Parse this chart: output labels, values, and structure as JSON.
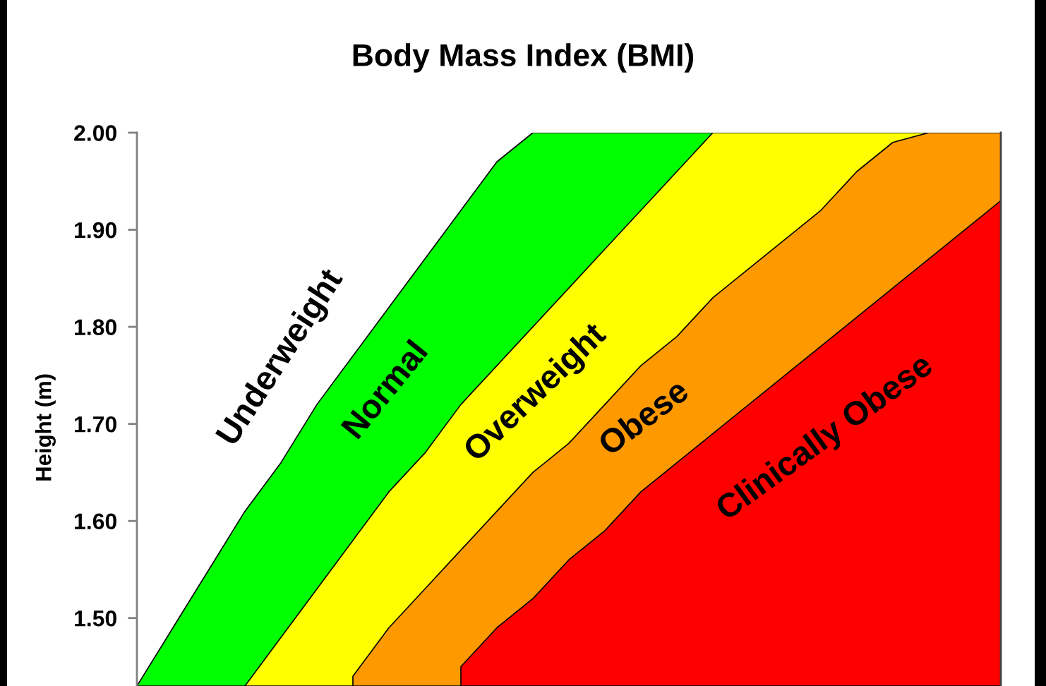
{
  "chart_data": {
    "type": "area",
    "title": "Body Mass Index (BMI)",
    "ylabel": "Height (m)",
    "categories": [
      null,
      null,
      null,
      null,
      null,
      null,
      null,
      null,
      null,
      null,
      null,
      null,
      null,
      null,
      null,
      null,
      null,
      null,
      null,
      null,
      null,
      null,
      null,
      null,
      null
    ],
    "ylim": [
      1.43,
      2.0
    ],
    "yticks": [
      {
        "value": 1.5,
        "label": "1.50"
      },
      {
        "value": 1.6,
        "label": "1.60"
      },
      {
        "value": 1.7,
        "label": "1.70"
      },
      {
        "value": 1.8,
        "label": "1.80"
      },
      {
        "value": 1.9,
        "label": "1.90"
      },
      {
        "value": 2.0,
        "label": "2.00"
      }
    ],
    "tick_labels": "y",
    "series": [
      {
        "name": "Normal",
        "color": "#00ff00",
        "values": [
          1.43,
          1.49,
          1.55,
          1.61,
          1.66,
          1.72,
          1.77,
          1.82,
          1.87,
          1.92,
          1.97,
          2.0,
          2.0,
          2.0,
          2.0,
          2.0,
          2.0,
          2.0,
          2.0,
          2.0,
          2.0,
          2.0,
          2.0,
          2.0,
          2.0
        ]
      },
      {
        "name": "Overweight",
        "color": "#ffff00",
        "values": [
          null,
          null,
          null,
          1.43,
          1.48,
          1.53,
          1.58,
          1.63,
          1.67,
          1.72,
          1.76,
          1.8,
          1.84,
          1.88,
          1.92,
          1.96,
          2.0,
          2.0,
          2.0,
          2.0,
          2.0,
          2.0,
          2.0,
          2.0,
          2.0
        ]
      },
      {
        "name": "Obese",
        "color": "#ff9900",
        "values": [
          null,
          null,
          null,
          null,
          null,
          null,
          1.44,
          1.49,
          1.53,
          1.57,
          1.61,
          1.65,
          1.68,
          1.72,
          1.76,
          1.79,
          1.83,
          1.86,
          1.89,
          1.92,
          1.96,
          1.99,
          2.0,
          2.0,
          2.0
        ]
      },
      {
        "name": "Clinically Obese",
        "color": "#ff0000",
        "values": [
          null,
          null,
          null,
          null,
          null,
          null,
          null,
          null,
          null,
          1.45,
          1.49,
          1.52,
          1.56,
          1.59,
          1.63,
          1.66,
          1.69,
          1.72,
          1.75,
          1.78,
          1.81,
          1.84,
          1.87,
          1.9,
          1.93
        ]
      }
    ],
    "annotations": [
      "Underweight"
    ]
  }
}
